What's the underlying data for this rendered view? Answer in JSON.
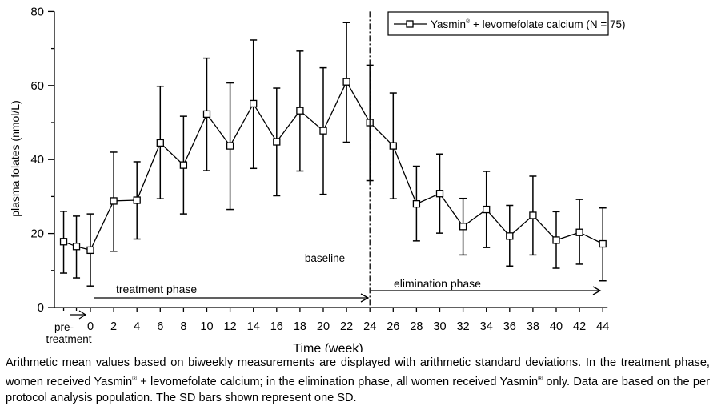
{
  "chart_data": {
    "type": "line",
    "ylabel": "plasma folates (nmol/L)",
    "xlabel": "Time (week)",
    "ylim": [
      0,
      80
    ],
    "yticks": [
      0,
      20,
      40,
      60,
      80
    ],
    "pre_label_line1": "pre-",
    "pre_label_line2": "treatment",
    "x_tick_labels": [
      "0",
      "2",
      "4",
      "6",
      "8",
      "10",
      "12",
      "14",
      "16",
      "18",
      "20",
      "22",
      "24",
      "26",
      "28",
      "30",
      "32",
      "34",
      "36",
      "38",
      "40",
      "42",
      "44"
    ],
    "legend": {
      "name": "Yasmin",
      "reg": "®",
      "rest": " + levomefolate calcium (N = 75)"
    },
    "baseline_week": 24,
    "annotations": {
      "baseline": "baseline",
      "treatment": "treatment phase",
      "elimination": "elimination phase"
    },
    "series": [
      {
        "name": "Yasmin® + levomefolate calcium (N = 75)",
        "points": [
          {
            "week": -2.3,
            "mean": 17.8,
            "sd_low": 9.3,
            "sd_high": 26.0
          },
          {
            "week": -1.2,
            "mean": 16.5,
            "sd_low": 8.0,
            "sd_high": 24.7
          },
          {
            "week": 0,
            "mean": 15.5,
            "sd_low": 5.8,
            "sd_high": 25.3
          },
          {
            "week": 2,
            "mean": 28.8,
            "sd_low": 15.2,
            "sd_high": 42.0
          },
          {
            "week": 4,
            "mean": 29.0,
            "sd_low": 18.5,
            "sd_high": 39.4
          },
          {
            "week": 6,
            "mean": 44.5,
            "sd_low": 29.4,
            "sd_high": 59.8
          },
          {
            "week": 8,
            "mean": 38.5,
            "sd_low": 25.3,
            "sd_high": 51.7
          },
          {
            "week": 10,
            "mean": 52.3,
            "sd_low": 37.0,
            "sd_high": 67.4
          },
          {
            "week": 12,
            "mean": 43.7,
            "sd_low": 26.5,
            "sd_high": 60.7
          },
          {
            "week": 14,
            "mean": 55.1,
            "sd_low": 37.6,
            "sd_high": 72.3
          },
          {
            "week": 16,
            "mean": 44.8,
            "sd_low": 30.2,
            "sd_high": 59.3
          },
          {
            "week": 18,
            "mean": 53.2,
            "sd_low": 36.9,
            "sd_high": 69.3
          },
          {
            "week": 20,
            "mean": 47.8,
            "sd_low": 30.6,
            "sd_high": 64.8
          },
          {
            "week": 22,
            "mean": 61.0,
            "sd_low": 44.7,
            "sd_high": 77.0
          },
          {
            "week": 24,
            "mean": 50.0,
            "sd_low": 34.3,
            "sd_high": 65.5
          },
          {
            "week": 26,
            "mean": 43.7,
            "sd_low": 29.4,
            "sd_high": 58.0
          },
          {
            "week": 28,
            "mean": 28.0,
            "sd_low": 18.0,
            "sd_high": 38.2
          },
          {
            "week": 30,
            "mean": 30.8,
            "sd_low": 20.1,
            "sd_high": 41.5
          },
          {
            "week": 32,
            "mean": 21.9,
            "sd_low": 14.2,
            "sd_high": 29.5
          },
          {
            "week": 34,
            "mean": 26.5,
            "sd_low": 16.2,
            "sd_high": 36.8
          },
          {
            "week": 36,
            "mean": 19.3,
            "sd_low": 11.2,
            "sd_high": 27.6
          },
          {
            "week": 38,
            "mean": 24.9,
            "sd_low": 14.2,
            "sd_high": 35.5
          },
          {
            "week": 40,
            "mean": 18.2,
            "sd_low": 10.6,
            "sd_high": 25.9
          },
          {
            "week": 42,
            "mean": 20.3,
            "sd_low": 11.7,
            "sd_high": 29.2
          },
          {
            "week": 44,
            "mean": 17.2,
            "sd_low": 7.2,
            "sd_high": 26.9
          }
        ]
      }
    ]
  },
  "caption": {
    "part1": "Arithmetic mean values based on biweekly measurements are displayed with arithmetic standard deviations. In the treatment phase, women received Yasmin",
    "reg": "®",
    "part2": " + levomefolate calcium; in the elimination phase, all women received Yasmin",
    "part3": " only. Data are based on the per protocol analysis population. The SD bars shown represent one SD."
  }
}
